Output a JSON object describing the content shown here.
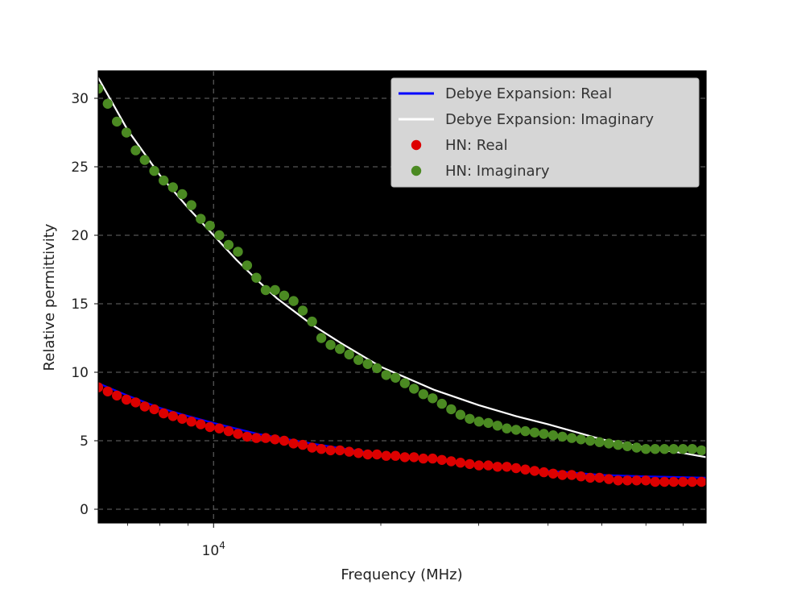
{
  "chart_data": {
    "type": "line",
    "title": "",
    "xlabel": "Frequency (MHz)",
    "ylabel": "Relative permittivity",
    "xscale": "log",
    "xlim": [
      6200,
      77000
    ],
    "ylim": [
      -1,
      32
    ],
    "xticks": [
      {
        "value": 10000,
        "base": "10",
        "exp": "4"
      }
    ],
    "xminor_ticks": [
      7000,
      8000,
      9000,
      20000,
      30000,
      40000,
      50000,
      60000,
      70000
    ],
    "yticks": [
      0,
      5,
      10,
      15,
      20,
      25,
      30
    ],
    "background": "#000000",
    "grid": true,
    "legend_position": "top-right",
    "colors": {
      "debye_real": "#0000ff",
      "debye_imag": "#ffffff",
      "hn_real": "#dd0000",
      "hn_imag": "#4b8a22"
    },
    "series": [
      {
        "name": "Debye Expansion: Real",
        "kind": "line",
        "color": "#0000ff",
        "x": [
          6200,
          7000,
          8000,
          9000,
          10000,
          12000,
          15000,
          20000,
          25000,
          30000,
          40000,
          50000,
          60000,
          77000
        ],
        "y": [
          9.2,
          8.3,
          7.4,
          6.8,
          6.3,
          5.5,
          4.8,
          4.0,
          3.6,
          3.2,
          2.8,
          2.5,
          2.4,
          2.3
        ]
      },
      {
        "name": "Debye Expansion: Imaginary",
        "kind": "line",
        "color": "#ffffff",
        "x": [
          6200,
          7000,
          8000,
          9000,
          10000,
          11000,
          12000,
          13000,
          15000,
          17000,
          20000,
          25000,
          30000,
          35000,
          40000,
          50000,
          60000,
          70000,
          77000
        ],
        "y": [
          31.5,
          27.7,
          24.4,
          22.0,
          20.0,
          18.2,
          16.7,
          15.4,
          13.5,
          12.1,
          10.4,
          8.7,
          7.6,
          6.8,
          6.2,
          5.1,
          4.5,
          4.1,
          3.8
        ]
      },
      {
        "name": "HN: Real",
        "kind": "scatter",
        "color": "#dd0000",
        "x": [
          6200,
          6450,
          6700,
          6970,
          7240,
          7520,
          7820,
          8130,
          8450,
          8780,
          9120,
          9480,
          9850,
          10240,
          10640,
          11060,
          11490,
          11940,
          12410,
          12900,
          13400,
          13930,
          14470,
          15040,
          15630,
          16240,
          16880,
          17540,
          18230,
          18940,
          19680,
          20450,
          21250,
          22090,
          22950,
          23850,
          24790,
          25760,
          26770,
          27820,
          28910,
          30040,
          31220,
          32440,
          33710,
          35030,
          36410,
          37830,
          39310,
          40850,
          42450,
          44120,
          45840,
          47640,
          49510,
          51450,
          53460,
          55560,
          57730,
          59990,
          62340,
          64790,
          67320,
          69960,
          72700,
          75550
        ],
        "y": [
          8.9,
          8.6,
          8.3,
          8.0,
          7.8,
          7.5,
          7.3,
          7.0,
          6.8,
          6.6,
          6.4,
          6.2,
          6.0,
          5.9,
          5.7,
          5.5,
          5.3,
          5.2,
          5.2,
          5.1,
          5.0,
          4.8,
          4.7,
          4.5,
          4.4,
          4.3,
          4.3,
          4.2,
          4.1,
          4.0,
          4.0,
          3.9,
          3.9,
          3.8,
          3.8,
          3.7,
          3.7,
          3.6,
          3.5,
          3.4,
          3.3,
          3.2,
          3.2,
          3.1,
          3.1,
          3.0,
          2.9,
          2.8,
          2.7,
          2.6,
          2.5,
          2.5,
          2.4,
          2.3,
          2.3,
          2.2,
          2.1,
          2.1,
          2.1,
          2.1,
          2.0,
          2.0,
          2.0,
          2.0,
          2.0,
          2.0
        ]
      },
      {
        "name": "HN: Imaginary",
        "kind": "scatter",
        "color": "#4b8a22",
        "x": [
          6200,
          6450,
          6700,
          6970,
          7240,
          7520,
          7820,
          8130,
          8450,
          8780,
          9120,
          9480,
          9850,
          10240,
          10640,
          11060,
          11490,
          11940,
          12410,
          12900,
          13400,
          13930,
          14470,
          15040,
          15630,
          16240,
          16880,
          17540,
          18230,
          18940,
          19680,
          20450,
          21250,
          22090,
          22950,
          23850,
          24790,
          25760,
          26770,
          27820,
          28910,
          30040,
          31220,
          32440,
          33710,
          35030,
          36410,
          37830,
          39310,
          40850,
          42450,
          44120,
          45840,
          47640,
          49510,
          51450,
          53460,
          55560,
          57730,
          59990,
          62340,
          64790,
          67320,
          69960,
          72700,
          75550
        ],
        "y": [
          30.7,
          29.6,
          28.3,
          27.5,
          26.2,
          25.5,
          24.7,
          24.0,
          23.5,
          23.0,
          22.2,
          21.2,
          20.7,
          20.0,
          19.3,
          18.8,
          17.8,
          16.9,
          16.0,
          16.0,
          15.6,
          15.2,
          14.5,
          13.7,
          12.5,
          12.0,
          11.7,
          11.3,
          10.9,
          10.6,
          10.3,
          9.8,
          9.6,
          9.2,
          8.8,
          8.4,
          8.1,
          7.7,
          7.3,
          6.9,
          6.6,
          6.4,
          6.3,
          6.1,
          5.9,
          5.8,
          5.7,
          5.6,
          5.5,
          5.4,
          5.3,
          5.2,
          5.1,
          5.0,
          4.9,
          4.8,
          4.7,
          4.6,
          4.5,
          4.4,
          4.4,
          4.4,
          4.4,
          4.4,
          4.4,
          4.3
        ]
      }
    ]
  }
}
